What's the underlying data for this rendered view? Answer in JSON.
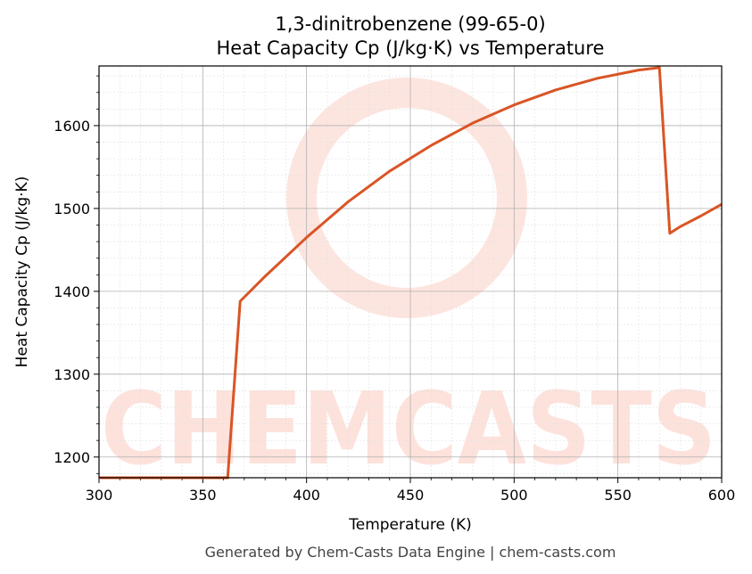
{
  "title_line1": "1,3-dinitrobenzene (99-65-0)",
  "title_line2": "Heat Capacity Cp (J/kg·K) vs Temperature",
  "footer": "Generated by Chem-Casts Data Engine | chem-casts.com",
  "watermark": "CHEMCASTS",
  "colors": {
    "line": "#d95525",
    "watermark": "#fde2dc",
    "grid_major": "#b0b0b0",
    "grid_minor": "#e0e0e0"
  },
  "chart_data": {
    "type": "line",
    "xlabel": "Temperature (K)",
    "ylabel": "Heat Capacity Cp (J/kg·K)",
    "xlim": [
      300,
      600
    ],
    "ylim": [
      1175,
      1672
    ],
    "x_ticks": [
      300,
      350,
      400,
      450,
      500,
      550,
      600
    ],
    "y_ticks": [
      1200,
      1300,
      1400,
      1500,
      1600
    ],
    "grid": true,
    "series": [
      {
        "x": [
          300,
          362,
          368,
          380,
          400,
          420,
          440,
          460,
          480,
          500,
          520,
          540,
          560,
          570,
          575,
          580,
          590,
          600
        ],
        "y": [
          1175,
          1175,
          1388,
          1418,
          1465,
          1508,
          1545,
          1576,
          1603,
          1625,
          1643,
          1657,
          1667,
          1670,
          1470,
          1478,
          1491,
          1505
        ]
      }
    ]
  }
}
